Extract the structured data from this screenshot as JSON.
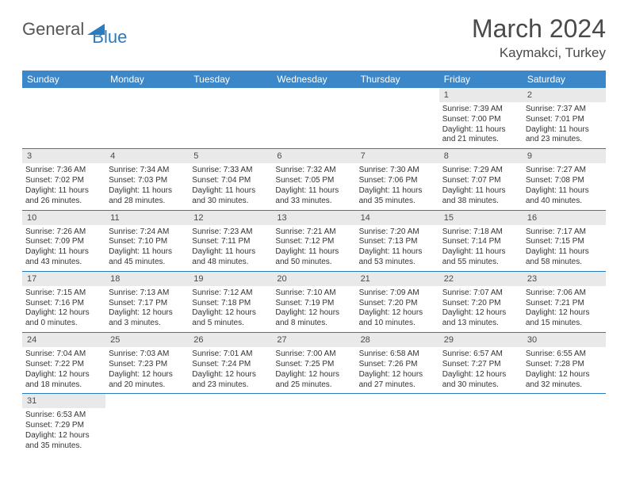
{
  "logo": {
    "text1": "General",
    "text2": "Blue",
    "color1": "#5a5a5a",
    "color2": "#2b7bbf",
    "shape_color": "#2b7bbf"
  },
  "title": "March 2024",
  "location": "Kaymakci, Turkey",
  "title_color": "#4a4a4a",
  "header_bg": "#3b87c8",
  "header_fg": "#ffffff",
  "divider_color": "#2b7bbf",
  "shade_bg": "#e9e9e9",
  "weekdays": [
    "Sunday",
    "Monday",
    "Tuesday",
    "Wednesday",
    "Thursday",
    "Friday",
    "Saturday"
  ],
  "weeks": [
    {
      "days": [
        null,
        null,
        null,
        null,
        null,
        {
          "n": "1",
          "sunrise": "7:39 AM",
          "sunset": "7:00 PM",
          "daylight": "11 hours and 21 minutes."
        },
        {
          "n": "2",
          "sunrise": "7:37 AM",
          "sunset": "7:01 PM",
          "daylight": "11 hours and 23 minutes."
        }
      ]
    },
    {
      "days": [
        {
          "n": "3",
          "sunrise": "7:36 AM",
          "sunset": "7:02 PM",
          "daylight": "11 hours and 26 minutes."
        },
        {
          "n": "4",
          "sunrise": "7:34 AM",
          "sunset": "7:03 PM",
          "daylight": "11 hours and 28 minutes."
        },
        {
          "n": "5",
          "sunrise": "7:33 AM",
          "sunset": "7:04 PM",
          "daylight": "11 hours and 30 minutes."
        },
        {
          "n": "6",
          "sunrise": "7:32 AM",
          "sunset": "7:05 PM",
          "daylight": "11 hours and 33 minutes."
        },
        {
          "n": "7",
          "sunrise": "7:30 AM",
          "sunset": "7:06 PM",
          "daylight": "11 hours and 35 minutes."
        },
        {
          "n": "8",
          "sunrise": "7:29 AM",
          "sunset": "7:07 PM",
          "daylight": "11 hours and 38 minutes."
        },
        {
          "n": "9",
          "sunrise": "7:27 AM",
          "sunset": "7:08 PM",
          "daylight": "11 hours and 40 minutes."
        }
      ]
    },
    {
      "days": [
        {
          "n": "10",
          "sunrise": "7:26 AM",
          "sunset": "7:09 PM",
          "daylight": "11 hours and 43 minutes."
        },
        {
          "n": "11",
          "sunrise": "7:24 AM",
          "sunset": "7:10 PM",
          "daylight": "11 hours and 45 minutes."
        },
        {
          "n": "12",
          "sunrise": "7:23 AM",
          "sunset": "7:11 PM",
          "daylight": "11 hours and 48 minutes."
        },
        {
          "n": "13",
          "sunrise": "7:21 AM",
          "sunset": "7:12 PM",
          "daylight": "11 hours and 50 minutes."
        },
        {
          "n": "14",
          "sunrise": "7:20 AM",
          "sunset": "7:13 PM",
          "daylight": "11 hours and 53 minutes."
        },
        {
          "n": "15",
          "sunrise": "7:18 AM",
          "sunset": "7:14 PM",
          "daylight": "11 hours and 55 minutes."
        },
        {
          "n": "16",
          "sunrise": "7:17 AM",
          "sunset": "7:15 PM",
          "daylight": "11 hours and 58 minutes."
        }
      ]
    },
    {
      "days": [
        {
          "n": "17",
          "sunrise": "7:15 AM",
          "sunset": "7:16 PM",
          "daylight": "12 hours and 0 minutes."
        },
        {
          "n": "18",
          "sunrise": "7:13 AM",
          "sunset": "7:17 PM",
          "daylight": "12 hours and 3 minutes."
        },
        {
          "n": "19",
          "sunrise": "7:12 AM",
          "sunset": "7:18 PM",
          "daylight": "12 hours and 5 minutes."
        },
        {
          "n": "20",
          "sunrise": "7:10 AM",
          "sunset": "7:19 PM",
          "daylight": "12 hours and 8 minutes."
        },
        {
          "n": "21",
          "sunrise": "7:09 AM",
          "sunset": "7:20 PM",
          "daylight": "12 hours and 10 minutes."
        },
        {
          "n": "22",
          "sunrise": "7:07 AM",
          "sunset": "7:20 PM",
          "daylight": "12 hours and 13 minutes."
        },
        {
          "n": "23",
          "sunrise": "7:06 AM",
          "sunset": "7:21 PM",
          "daylight": "12 hours and 15 minutes."
        }
      ]
    },
    {
      "days": [
        {
          "n": "24",
          "sunrise": "7:04 AM",
          "sunset": "7:22 PM",
          "daylight": "12 hours and 18 minutes."
        },
        {
          "n": "25",
          "sunrise": "7:03 AM",
          "sunset": "7:23 PM",
          "daylight": "12 hours and 20 minutes."
        },
        {
          "n": "26",
          "sunrise": "7:01 AM",
          "sunset": "7:24 PM",
          "daylight": "12 hours and 23 minutes."
        },
        {
          "n": "27",
          "sunrise": "7:00 AM",
          "sunset": "7:25 PM",
          "daylight": "12 hours and 25 minutes."
        },
        {
          "n": "28",
          "sunrise": "6:58 AM",
          "sunset": "7:26 PM",
          "daylight": "12 hours and 27 minutes."
        },
        {
          "n": "29",
          "sunrise": "6:57 AM",
          "sunset": "7:27 PM",
          "daylight": "12 hours and 30 minutes."
        },
        {
          "n": "30",
          "sunrise": "6:55 AM",
          "sunset": "7:28 PM",
          "daylight": "12 hours and 32 minutes."
        }
      ]
    },
    {
      "days": [
        {
          "n": "31",
          "sunrise": "6:53 AM",
          "sunset": "7:29 PM",
          "daylight": "12 hours and 35 minutes."
        },
        null,
        null,
        null,
        null,
        null,
        null
      ]
    }
  ],
  "labels": {
    "sunrise": "Sunrise:",
    "sunset": "Sunset:",
    "daylight": "Daylight:"
  }
}
